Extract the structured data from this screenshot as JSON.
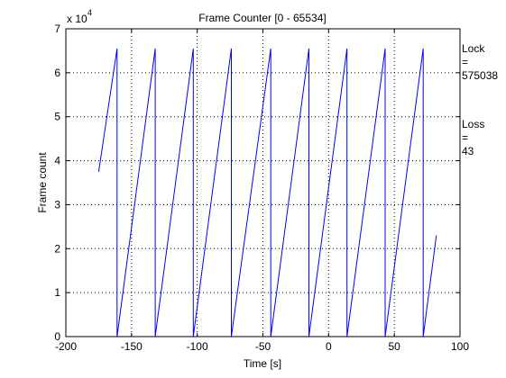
{
  "chart_data": {
    "type": "line",
    "title": "Frame Counter [0 - 65534]",
    "xlabel": "Time [s]",
    "ylabel": "Frame count",
    "y_exponent_label": "x 10",
    "y_exponent": "4",
    "xlim": [
      -200,
      100
    ],
    "ylim": [
      0,
      7
    ],
    "xticks": [
      -200,
      -150,
      -100,
      -50,
      0,
      50,
      100
    ],
    "xtick_labels": [
      "-200",
      "-150",
      "-100",
      "-50",
      "0",
      "50",
      "100"
    ],
    "yticks": [
      0,
      1,
      2,
      3,
      4,
      5,
      6,
      7
    ],
    "ytick_labels": [
      "0",
      "1",
      "2",
      "3",
      "4",
      "5",
      "6",
      "7"
    ],
    "grid": true,
    "line_color": "#0000ff",
    "series": [
      {
        "x": [
          -175,
          -161,
          -161,
          -132,
          -132,
          -103,
          -103,
          -74,
          -74,
          -44,
          -44,
          -15,
          -15,
          14,
          14,
          43,
          43,
          72,
          72,
          82
        ],
        "y": [
          3.75,
          6.55,
          0,
          6.55,
          0,
          6.55,
          0,
          6.55,
          0,
          6.55,
          0,
          6.55,
          0,
          6.55,
          0,
          6.55,
          0,
          6.55,
          0,
          2.3
        ]
      }
    ]
  },
  "annotations": {
    "lock": {
      "label": "Lock",
      "eq": "=",
      "value": "575038"
    },
    "loss": {
      "label": "Loss",
      "eq": "=",
      "value": "43"
    }
  }
}
